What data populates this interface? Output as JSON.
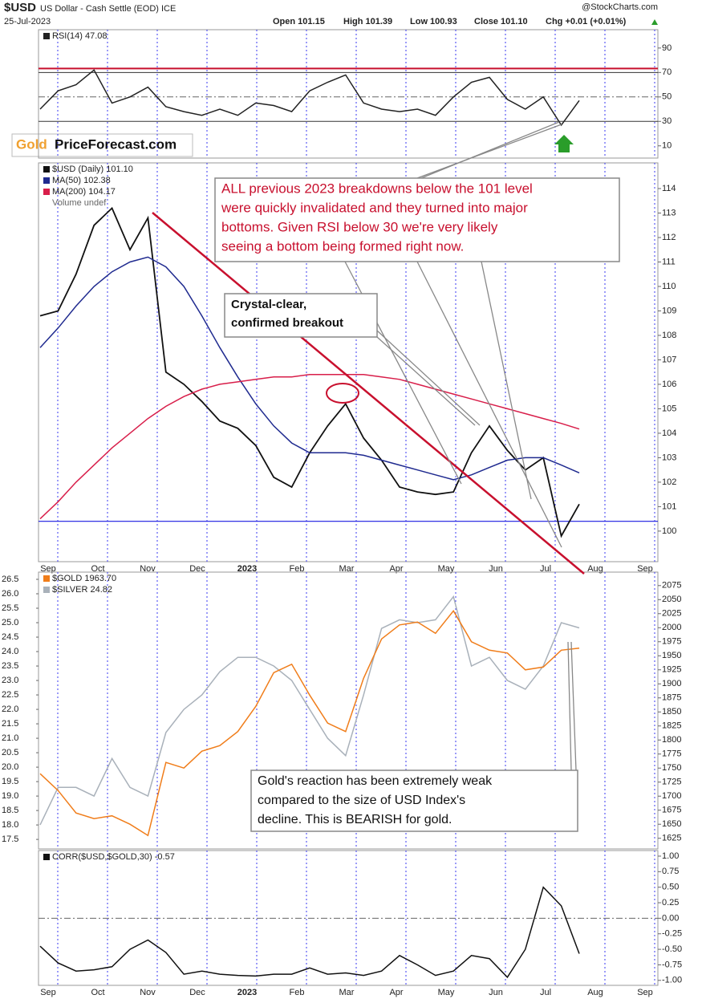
{
  "header": {
    "symbol": "$USD",
    "name": "US Dollar - Cash Settle (EOD) ICE",
    "date": "25-Jul-2023",
    "quote": [
      "Open 101.15",
      "High 101.39",
      "Low 100.93",
      "Close 101.10",
      "Chg +0.01 (+0.01%)"
    ],
    "source": "@StockCharts.com",
    "logo": [
      "Gold",
      "PriceForecast.com"
    ]
  },
  "chart_data": [
    {
      "type": "line",
      "ylim": [
        0,
        105
      ],
      "yticks": [
        10,
        30,
        50,
        70,
        90
      ],
      "overbought": 70,
      "oversold": 30,
      "midline": 50,
      "series": [
        {
          "name": "RSI(14) 47.08",
          "color": "#222222",
          "values": [
            40,
            55,
            60,
            72,
            45,
            50,
            58,
            42,
            38,
            35,
            40,
            35,
            45,
            43,
            38,
            55,
            62,
            68,
            45,
            40,
            38,
            40,
            35,
            50,
            62,
            66,
            48,
            40,
            50,
            27,
            47.08
          ]
        }
      ]
    },
    {
      "type": "line",
      "ylim": [
        98.75,
        115.05
      ],
      "yticks": [
        100,
        101,
        102,
        103,
        104,
        105,
        106,
        107,
        108,
        109,
        110,
        111,
        112,
        113,
        114
      ],
      "support_level": 100.4,
      "extra_legend": "Volume undef",
      "x_labels": [
        "Sep",
        "Oct",
        "Nov",
        "Dec",
        "2023",
        "Feb",
        "Mar",
        "Apr",
        "May",
        "Jun",
        "Jul",
        "Aug",
        "Sep"
      ],
      "series": [
        {
          "name": "$USD (Daily) 101.10",
          "color": "#111111",
          "values": [
            108.8,
            109.0,
            110.5,
            112.5,
            113.2,
            111.5,
            112.8,
            106.5,
            106.0,
            105.3,
            104.5,
            104.2,
            103.5,
            102.2,
            101.8,
            103.2,
            104.3,
            105.2,
            103.8,
            102.9,
            101.8,
            101.6,
            101.5,
            101.6,
            103.2,
            104.3,
            103.3,
            102.5,
            103.0,
            99.8,
            101.1
          ]
        },
        {
          "name": "MA(50) 102.38",
          "color": "#1f2a8f",
          "values": [
            107.5,
            108.3,
            109.2,
            110.0,
            110.6,
            111.0,
            111.2,
            110.8,
            110.0,
            108.8,
            107.5,
            106.3,
            105.2,
            104.3,
            103.6,
            103.2,
            103.2,
            103.2,
            103.1,
            102.9,
            102.7,
            102.5,
            102.3,
            102.1,
            102.3,
            102.6,
            102.9,
            103.0,
            103.0,
            102.7,
            102.38
          ]
        },
        {
          "name": "MA(200) 104.17",
          "color": "#d81e4a",
          "values": [
            100.5,
            101.2,
            102.0,
            102.7,
            103.4,
            104.0,
            104.6,
            105.1,
            105.5,
            105.8,
            106.0,
            106.1,
            106.2,
            106.3,
            106.3,
            106.4,
            106.4,
            106.4,
            106.4,
            106.3,
            106.2,
            106.0,
            105.8,
            105.6,
            105.4,
            105.2,
            105.0,
            104.8,
            104.6,
            104.4,
            104.17
          ]
        }
      ],
      "annotations": [
        {
          "color": "#c8102e",
          "lines": [
            "ALL previous 2023 breakdowns below the 101 level",
            "were quickly invalidated and they turned into major",
            "bottoms. Given RSI below 30 we're very likely",
            "seeing a bottom being formed right now."
          ]
        },
        {
          "color": "#111111",
          "lines": [
            "Crystal-clear,",
            "confirmed breakout"
          ]
        }
      ]
    },
    {
      "type": "line",
      "ylim": [
        17.17,
        26.75
      ],
      "y2lim": [
        1606,
        2099
      ],
      "yticks": [
        17.5,
        {
          "value": 18,
          "label": "18.0"
        },
        18.5,
        {
          "value": 19,
          "label": "19.0"
        },
        19.5,
        {
          "value": 20,
          "label": "20.0"
        },
        20.5,
        {
          "value": 21,
          "label": "21.0"
        },
        21.5,
        {
          "value": 22,
          "label": "22.0"
        },
        22.5,
        {
          "value": 23,
          "label": "23.0"
        },
        23.5,
        {
          "value": 24,
          "label": "24.0"
        },
        24.5,
        {
          "value": 25,
          "label": "25.0"
        },
        25.5,
        {
          "value": 26,
          "label": "26.0"
        },
        26.5
      ],
      "y2ticks": [
        1625,
        1650,
        1675,
        1700,
        1725,
        1750,
        1775,
        1800,
        1825,
        1850,
        1875,
        1900,
        1925,
        1950,
        1975,
        2000,
        2025,
        2050,
        2075
      ],
      "series": [
        {
          "name": "$SILVER 24.82",
          "color": "#a9b1ba",
          "values": [
            18.0,
            19.3,
            19.3,
            19.0,
            20.3,
            19.3,
            19.0,
            21.2,
            22.0,
            22.5,
            23.3,
            23.8,
            23.8,
            23.5,
            23.0,
            22.0,
            21.0,
            20.4,
            22.5,
            24.8,
            25.1,
            25.0,
            25.1,
            25.9,
            23.5,
            23.8,
            23.0,
            22.7,
            23.5,
            25.0,
            24.82
          ]
        },
        {
          "name": "$GOLD 1963.70",
          "color": "#f07d1a",
          "axis": "y2",
          "values": [
            1740,
            1710,
            1670,
            1660,
            1665,
            1650,
            1630,
            1760,
            1750,
            1780,
            1790,
            1815,
            1860,
            1920,
            1935,
            1880,
            1830,
            1815,
            1910,
            1980,
            2005,
            2010,
            1990,
            2030,
            1975,
            1960,
            1955,
            1925,
            1930,
            1960,
            1963.7
          ]
        }
      ],
      "annotations": [
        {
          "color": "#111111",
          "lines": [
            "Gold's reaction has been extremely weak",
            "compared to the size of USD Index's",
            "decline. This is BEARISH for gold."
          ]
        }
      ]
    },
    {
      "type": "line",
      "ylim": [
        -1.08,
        1.09
      ],
      "zero_line": 0,
      "yticks": [
        {
          "value": 1,
          "label": "1.00"
        },
        {
          "value": 0.75,
          "label": "0.75"
        },
        {
          "value": 0.5,
          "label": "0.50"
        },
        {
          "value": 0.25,
          "label": "0.25"
        },
        {
          "value": 0,
          "label": "0.00"
        },
        {
          "value": -0.25,
          "label": "-0.25"
        },
        {
          "value": -0.5,
          "label": "-0.50"
        },
        {
          "value": -0.75,
          "label": "-0.75"
        },
        {
          "value": -1,
          "label": "-1.00"
        }
      ],
      "x_labels": [
        "Sep",
        "Oct",
        "Nov",
        "Dec",
        "2023",
        "Feb",
        "Mar",
        "Apr",
        "May",
        "Jun",
        "Jul",
        "Aug",
        "Sep"
      ],
      "series": [
        {
          "name": "CORR($USD,$GOLD,30) -0.57",
          "color": "#111111",
          "values": [
            -0.45,
            -0.72,
            -0.85,
            -0.83,
            -0.78,
            -0.5,
            -0.35,
            -0.55,
            -0.9,
            -0.85,
            -0.9,
            -0.92,
            -0.93,
            -0.9,
            -0.9,
            -0.8,
            -0.9,
            -0.88,
            -0.92,
            -0.85,
            -0.6,
            -0.75,
            -0.92,
            -0.85,
            -0.6,
            -0.65,
            -0.95,
            -0.5,
            0.5,
            0.2,
            -0.57
          ]
        }
      ]
    }
  ]
}
